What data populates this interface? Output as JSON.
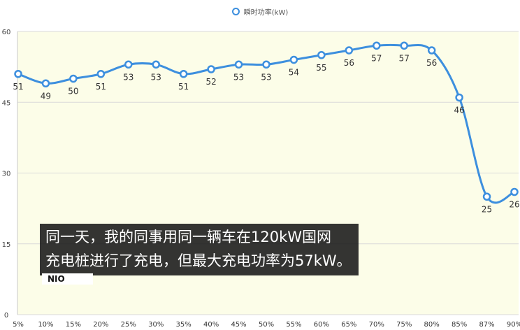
{
  "chart_data": {
    "type": "line",
    "title": "",
    "xlabel": "",
    "ylabel": "",
    "legend": {
      "label": "瞬时功率(kW)",
      "placement": "top-center"
    },
    "categories": [
      "5%",
      "10%",
      "15%",
      "20%",
      "25%",
      "30%",
      "35%",
      "40%",
      "45%",
      "50%",
      "55%",
      "60%",
      "65%",
      "70%",
      "75%",
      "80%",
      "85%",
      "87%",
      "90%"
    ],
    "x": [
      5,
      10,
      15,
      20,
      25,
      30,
      35,
      40,
      45,
      50,
      55,
      60,
      65,
      70,
      75,
      80,
      85,
      87,
      90
    ],
    "series": [
      {
        "name": "瞬时功率(kW)",
        "values": [
          51,
          49,
          50,
          51,
          53,
          53,
          51,
          52,
          53,
          53,
          54,
          55,
          56,
          57,
          57,
          56,
          46,
          25,
          26
        ]
      }
    ],
    "ylim": [
      0,
      60
    ],
    "yticks": [
      "0",
      "15",
      "30",
      "45",
      "60"
    ],
    "grid": true,
    "line_color": "#3d8fde",
    "plot_bg": "#fcfde8"
  },
  "caption": {
    "lines": [
      "同一天，我的同事用同一辆车在120kW国网",
      "充电桩进行了充电，但最大充电功率为57kW。"
    ]
  },
  "watermark": "NIO"
}
